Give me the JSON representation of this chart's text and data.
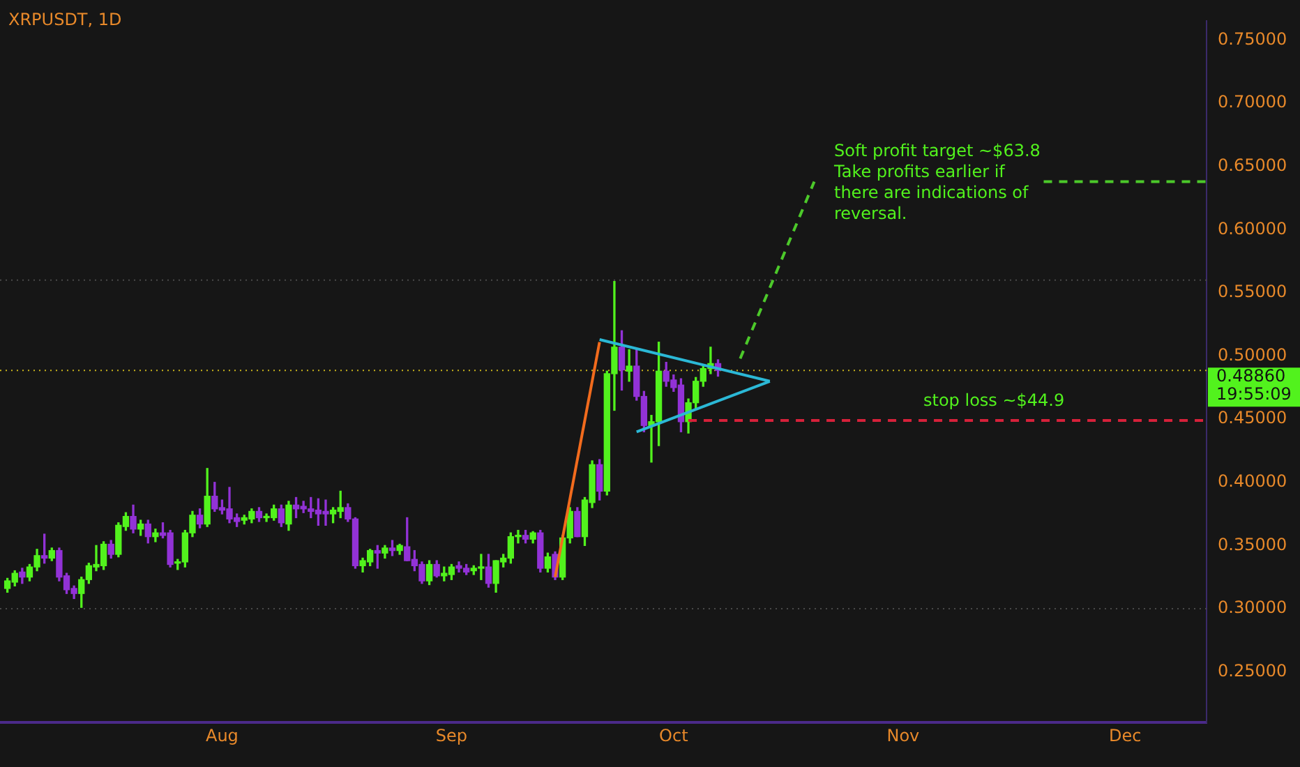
{
  "chart_data": {
    "type": "candlestick",
    "title": "XRPUSDT, 1D",
    "x": [
      "--07-03",
      "--07-04",
      "--07-05",
      "--07-06",
      "--07-07",
      "--07-08",
      "--07-09",
      "--07-10",
      "--07-11",
      "--07-12",
      "--07-13",
      "--07-14",
      "--07-15",
      "--07-16",
      "--07-17",
      "--07-18",
      "--07-19",
      "--07-20",
      "--07-21",
      "--07-22",
      "--07-23",
      "--07-24",
      "--07-25",
      "--07-26",
      "--07-27",
      "--07-28",
      "--07-29",
      "--07-30",
      "--07-31",
      "--08-01",
      "--08-02",
      "--08-03",
      "--08-04",
      "--08-05",
      "--08-06",
      "--08-07",
      "--08-08",
      "--08-09",
      "--08-10",
      "--08-11",
      "--08-12",
      "--08-13",
      "--08-14",
      "--08-15",
      "--08-16",
      "--08-17",
      "--08-18",
      "--08-19",
      "--08-20",
      "--08-21",
      "--08-22",
      "--08-23",
      "--08-24",
      "--08-25",
      "--08-26",
      "--08-27",
      "--08-28",
      "--08-29",
      "--08-30",
      "--08-31",
      "--09-01",
      "--09-02",
      "--09-03",
      "--09-04",
      "--09-05",
      "--09-06",
      "--09-07",
      "--09-08",
      "--09-09",
      "--09-10",
      "--09-11",
      "--09-12",
      "--09-13",
      "--09-14",
      "--09-15",
      "--09-16",
      "--09-17",
      "--09-18",
      "--09-19",
      "--09-20",
      "--09-21",
      "--09-22",
      "--09-23",
      "--09-24",
      "--09-25",
      "--09-26",
      "--09-27",
      "--09-28",
      "--09-29",
      "--09-30",
      "--10-01",
      "--10-02",
      "--10-03",
      "--10-04",
      "--10-05",
      "--10-06",
      "--10-07"
    ],
    "ohlc": [
      [
        0.316,
        0.324,
        0.313,
        0.322
      ],
      [
        0.321,
        0.33,
        0.318,
        0.328
      ],
      [
        0.329,
        0.332,
        0.32,
        0.325
      ],
      [
        0.325,
        0.335,
        0.322,
        0.333
      ],
      [
        0.333,
        0.347,
        0.33,
        0.342
      ],
      [
        0.342,
        0.359,
        0.336,
        0.34
      ],
      [
        0.34,
        0.348,
        0.338,
        0.346
      ],
      [
        0.346,
        0.348,
        0.322,
        0.325
      ],
      [
        0.326,
        0.328,
        0.312,
        0.315
      ],
      [
        0.316,
        0.318,
        0.308,
        0.312
      ],
      [
        0.312,
        0.325,
        0.301,
        0.323
      ],
      [
        0.323,
        0.336,
        0.32,
        0.334
      ],
      [
        0.333,
        0.35,
        0.33,
        0.335
      ],
      [
        0.334,
        0.353,
        0.331,
        0.351
      ],
      [
        0.351,
        0.354,
        0.34,
        0.343
      ],
      [
        0.343,
        0.368,
        0.341,
        0.366
      ],
      [
        0.365,
        0.376,
        0.362,
        0.373
      ],
      [
        0.373,
        0.382,
        0.36,
        0.363
      ],
      [
        0.363,
        0.37,
        0.358,
        0.367
      ],
      [
        0.367,
        0.37,
        0.352,
        0.357
      ],
      [
        0.357,
        0.363,
        0.353,
        0.36
      ],
      [
        0.36,
        0.368,
        0.356,
        0.358
      ],
      [
        0.36,
        0.362,
        0.333,
        0.335
      ],
      [
        0.336,
        0.339,
        0.331,
        0.337
      ],
      [
        0.337,
        0.362,
        0.333,
        0.36
      ],
      [
        0.36,
        0.377,
        0.357,
        0.374
      ],
      [
        0.374,
        0.379,
        0.364,
        0.367
      ],
      [
        0.367,
        0.411,
        0.365,
        0.389
      ],
      [
        0.389,
        0.4,
        0.377,
        0.379
      ],
      [
        0.38,
        0.386,
        0.375,
        0.378
      ],
      [
        0.379,
        0.396,
        0.368,
        0.371
      ],
      [
        0.372,
        0.375,
        0.365,
        0.369
      ],
      [
        0.37,
        0.374,
        0.367,
        0.372
      ],
      [
        0.371,
        0.379,
        0.368,
        0.377
      ],
      [
        0.377,
        0.38,
        0.369,
        0.372
      ],
      [
        0.372,
        0.375,
        0.369,
        0.373
      ],
      [
        0.372,
        0.382,
        0.37,
        0.379
      ],
      [
        0.379,
        0.382,
        0.365,
        0.368
      ],
      [
        0.367,
        0.385,
        0.362,
        0.382
      ],
      [
        0.382,
        0.388,
        0.372,
        0.379
      ],
      [
        0.381,
        0.385,
        0.376,
        0.379
      ],
      [
        0.379,
        0.388,
        0.372,
        0.377
      ],
      [
        0.378,
        0.387,
        0.366,
        0.375
      ],
      [
        0.377,
        0.386,
        0.366,
        0.375
      ],
      [
        0.375,
        0.38,
        0.368,
        0.378
      ],
      [
        0.377,
        0.393,
        0.372,
        0.38
      ],
      [
        0.38,
        0.383,
        0.369,
        0.371
      ],
      [
        0.371,
        0.372,
        0.332,
        0.334
      ],
      [
        0.334,
        0.34,
        0.329,
        0.338
      ],
      [
        0.337,
        0.347,
        0.334,
        0.346
      ],
      [
        0.346,
        0.35,
        0.332,
        0.344
      ],
      [
        0.344,
        0.35,
        0.34,
        0.348
      ],
      [
        0.348,
        0.354,
        0.342,
        0.346
      ],
      [
        0.346,
        0.351,
        0.343,
        0.35
      ],
      [
        0.349,
        0.372,
        0.338,
        0.338
      ],
      [
        0.339,
        0.346,
        0.33,
        0.334
      ],
      [
        0.335,
        0.337,
        0.32,
        0.322
      ],
      [
        0.322,
        0.338,
        0.319,
        0.335
      ],
      [
        0.335,
        0.338,
        0.325,
        0.326
      ],
      [
        0.326,
        0.333,
        0.322,
        0.328
      ],
      [
        0.327,
        0.335,
        0.323,
        0.333
      ],
      [
        0.334,
        0.337,
        0.329,
        0.332
      ],
      [
        0.332,
        0.335,
        0.327,
        0.329
      ],
      [
        0.33,
        0.334,
        0.327,
        0.332
      ],
      [
        0.332,
        0.343,
        0.323,
        0.333
      ],
      [
        0.333,
        0.343,
        0.317,
        0.32
      ],
      [
        0.32,
        0.338,
        0.313,
        0.338
      ],
      [
        0.337,
        0.343,
        0.333,
        0.34
      ],
      [
        0.34,
        0.36,
        0.336,
        0.357
      ],
      [
        0.357,
        0.362,
        0.352,
        0.358
      ],
      [
        0.358,
        0.362,
        0.352,
        0.355
      ],
      [
        0.355,
        0.361,
        0.352,
        0.36
      ],
      [
        0.36,
        0.362,
        0.329,
        0.332
      ],
      [
        0.332,
        0.344,
        0.329,
        0.341
      ],
      [
        0.343,
        0.345,
        0.323,
        0.325
      ],
      [
        0.325,
        0.358,
        0.323,
        0.356
      ],
      [
        0.356,
        0.38,
        0.352,
        0.377
      ],
      [
        0.377,
        0.38,
        0.357,
        0.357
      ],
      [
        0.357,
        0.388,
        0.35,
        0.386
      ],
      [
        0.384,
        0.417,
        0.38,
        0.414
      ],
      [
        0.414,
        0.418,
        0.386,
        0.393
      ],
      [
        0.393,
        0.488,
        0.39,
        0.486
      ],
      [
        0.486,
        0.559,
        0.457,
        0.507
      ],
      [
        0.507,
        0.52,
        0.473,
        0.489
      ],
      [
        0.488,
        0.505,
        0.48,
        0.492
      ],
      [
        0.492,
        0.505,
        0.465,
        0.468
      ],
      [
        0.468,
        0.472,
        0.44,
        0.445
      ],
      [
        0.445,
        0.453,
        0.416,
        0.448
      ],
      [
        0.448,
        0.511,
        0.429,
        0.488
      ],
      [
        0.488,
        0.495,
        0.476,
        0.48
      ],
      [
        0.481,
        0.485,
        0.472,
        0.475
      ],
      [
        0.477,
        0.482,
        0.44,
        0.448
      ],
      [
        0.448,
        0.466,
        0.439,
        0.463
      ],
      [
        0.463,
        0.483,
        0.458,
        0.48
      ],
      [
        0.48,
        0.493,
        0.476,
        0.49
      ],
      [
        0.49,
        0.507,
        0.486,
        0.494
      ],
      [
        0.494,
        0.497,
        0.484,
        0.4886
      ]
    ],
    "colors": [
      "#52f21d",
      "#52f21d",
      "#9232d6",
      "#52f21d",
      "#52f21d",
      "#9232d6",
      "#52f21d",
      "#9232d6",
      "#9232d6",
      "#9232d6",
      "#52f21d",
      "#52f21d",
      "#52f21d",
      "#52f21d",
      "#9232d6",
      "#52f21d",
      "#52f21d",
      "#9232d6",
      "#52f21d",
      "#9232d6",
      "#52f21d",
      "#9232d6",
      "#9232d6",
      "#52f21d",
      "#52f21d",
      "#52f21d",
      "#9232d6",
      "#52f21d",
      "#9232d6",
      "#9232d6",
      "#9232d6",
      "#9232d6",
      "#52f21d",
      "#52f21d",
      "#9232d6",
      "#52f21d",
      "#52f21d",
      "#9232d6",
      "#52f21d",
      "#9232d6",
      "#9232d6",
      "#9232d6",
      "#9232d6",
      "#9232d6",
      "#52f21d",
      "#52f21d",
      "#9232d6",
      "#9232d6",
      "#52f21d",
      "#52f21d",
      "#9232d6",
      "#52f21d",
      "#9232d6",
      "#52f21d",
      "#9232d6",
      "#9232d6",
      "#9232d6",
      "#52f21d",
      "#9232d6",
      "#52f21d",
      "#52f21d",
      "#9232d6",
      "#9232d6",
      "#52f21d",
      "#52f21d",
      "#9232d6",
      "#52f21d",
      "#52f21d",
      "#52f21d",
      "#52f21d",
      "#9232d6",
      "#52f21d",
      "#9232d6",
      "#52f21d",
      "#9232d6",
      "#52f21d",
      "#52f21d",
      "#9232d6",
      "#52f21d",
      "#52f21d",
      "#9232d6",
      "#52f21d",
      "#52f21d",
      "#9232d6",
      "#52f21d",
      "#9232d6",
      "#9232d6",
      "#52f21d",
      "#52f21d",
      "#9232d6",
      "#9232d6",
      "#9232d6",
      "#52f21d",
      "#52f21d",
      "#52f21d",
      "#52f21d",
      "#9232d6"
    ],
    "series": [
      {
        "type": "line",
        "color": "#f26b1d",
        "x": [
          "--09-15",
          "--09-21"
        ],
        "values": [
          0.325,
          0.511
        ]
      },
      {
        "type": "line",
        "color": "#2bb8d6",
        "x": [
          "--09-21",
          "--10-14"
        ],
        "values": [
          0.513,
          0.48
        ]
      },
      {
        "type": "line",
        "color": "#2bb8d6",
        "x": [
          "--09-26",
          "--10-14"
        ],
        "values": [
          0.44,
          0.48
        ]
      },
      {
        "type": "line",
        "color": "#4cc92a",
        "line_style": "dashed",
        "x": [
          "--10-10",
          "--10-20"
        ],
        "values": [
          0.498,
          0.638
        ]
      },
      {
        "type": "line",
        "color": "#4cc92a",
        "line_style": "dashed",
        "x": [
          "--11-20",
          "--12-12"
        ],
        "values": [
          0.638,
          0.638
        ]
      },
      {
        "type": "line",
        "color": "#d6213a",
        "line_style": "dashed",
        "x": [
          "--10-03",
          "--12-12"
        ],
        "values": [
          0.449,
          0.449
        ]
      }
    ],
    "ref_lines": [
      {
        "axis": "y",
        "value": 0.4886,
        "label": "0.48860\n19:55:09",
        "color": "#c8b41c",
        "line_style": "dotted"
      },
      {
        "axis": "y",
        "value": 0.56,
        "color": "#4a4a4a",
        "line_style": "dotted"
      },
      {
        "axis": "y",
        "value": 0.3,
        "color": "#4a4a4a",
        "line_style": "dotted"
      }
    ],
    "annotations": [
      "Soft profit target ~$63.8\nTake profits earlier if\nthere are indications of\nreversal.",
      "stop loss ~$44.9"
    ],
    "xlim": [
      "--07-02",
      "--12-12"
    ],
    "xticks": [
      {
        "value": "--08-01",
        "label": "Aug"
      },
      {
        "value": "--09-01",
        "label": "Sep"
      },
      {
        "value": "--10-01",
        "label": "Oct"
      },
      {
        "value": "--11-01",
        "label": "Nov"
      },
      {
        "value": "--12-01",
        "label": "Dec"
      }
    ],
    "ylim": [
      0.21,
      0.765
    ],
    "yticks": [
      {
        "value": 0.25,
        "label": "0.25000"
      },
      {
        "value": 0.3,
        "label": "0.30000"
      },
      {
        "value": 0.35,
        "label": "0.35000"
      },
      {
        "value": 0.4,
        "label": "0.40000"
      },
      {
        "value": 0.45,
        "label": "0.45000"
      },
      {
        "value": 0.5,
        "label": "0.50000"
      },
      {
        "value": 0.55,
        "label": "0.55000"
      },
      {
        "value": 0.6,
        "label": "0.60000"
      },
      {
        "value": 0.65,
        "label": "0.65000"
      },
      {
        "value": 0.7,
        "label": "0.70000"
      },
      {
        "value": 0.75,
        "label": "0.75000"
      }
    ]
  }
}
